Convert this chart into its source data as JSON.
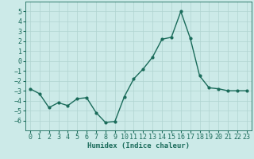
{
  "x": [
    0,
    1,
    2,
    3,
    4,
    5,
    6,
    7,
    8,
    9,
    10,
    11,
    12,
    13,
    14,
    15,
    16,
    17,
    18,
    19,
    20,
    21,
    22,
    23
  ],
  "y": [
    -2.8,
    -3.3,
    -4.7,
    -4.2,
    -4.5,
    -3.8,
    -3.7,
    -5.2,
    -6.2,
    -6.1,
    -3.6,
    -1.8,
    -0.8,
    0.4,
    2.2,
    2.4,
    5.0,
    2.3,
    -1.5,
    -2.7,
    -2.8,
    -3.0,
    -3.0,
    -3.0
  ],
  "line_color": "#1a6b5a",
  "marker": "o",
  "markersize": 2.0,
  "linewidth": 1.0,
  "bg_color": "#cceae8",
  "grid_color": "#b0d4d0",
  "xlabel": "Humidex (Indice chaleur)",
  "xlabel_fontsize": 6.5,
  "tick_fontsize": 6.0,
  "ylim": [
    -7,
    6
  ],
  "yticks": [
    -6,
    -5,
    -4,
    -3,
    -2,
    -1,
    0,
    1,
    2,
    3,
    4,
    5
  ],
  "xticks": [
    0,
    1,
    2,
    3,
    4,
    5,
    6,
    7,
    8,
    9,
    10,
    11,
    12,
    13,
    14,
    15,
    16,
    17,
    18,
    19,
    20,
    21,
    22,
    23
  ],
  "xlim": [
    -0.5,
    23.5
  ]
}
